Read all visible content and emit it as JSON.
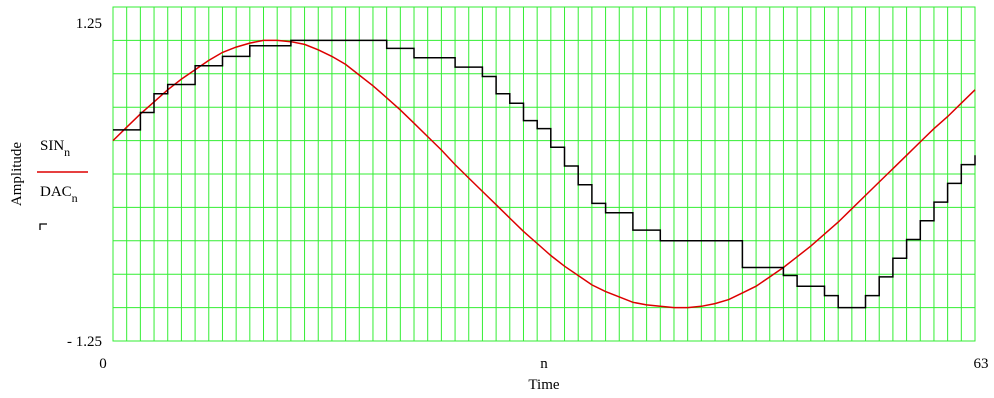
{
  "chart_data": {
    "type": "line",
    "xlabel": "Time",
    "x_variable": "n",
    "ylabel": "Amplitude",
    "xlim": [
      0,
      63
    ],
    "ylim": [
      -1.25,
      1.25
    ],
    "x_tick_labels": [
      "0",
      "63"
    ],
    "y_tick_labels": [
      "1.25",
      "- 1.25"
    ],
    "grid": true,
    "colors": {
      "grid": "#33ee33",
      "sin": "#dd0000",
      "dac": "#000000"
    },
    "legend": [
      {
        "base": "SIN",
        "subscript": "n",
        "style": "solid-red"
      },
      {
        "base": "DAC",
        "subscript": "n",
        "style": "step-black"
      }
    ],
    "series": [
      {
        "name": "SIN_n",
        "style": "line",
        "x": [
          0,
          1,
          2,
          3,
          4,
          5,
          6,
          7,
          8,
          9,
          10,
          11,
          12,
          13,
          14,
          15,
          16,
          17,
          18,
          19,
          20,
          21,
          22,
          23,
          24,
          25,
          26,
          27,
          28,
          29,
          30,
          31,
          32,
          33,
          34,
          35,
          36,
          37,
          38,
          39,
          40,
          41,
          42,
          43,
          44,
          45,
          46,
          47,
          48,
          49,
          50,
          51,
          52,
          53,
          54,
          55,
          56,
          57,
          58,
          59,
          60,
          61,
          62,
          63
        ],
        "values": [
          0.25,
          0.35,
          0.45,
          0.54,
          0.63,
          0.71,
          0.78,
          0.85,
          0.91,
          0.95,
          0.98,
          1.0,
          1.0,
          0.99,
          0.97,
          0.93,
          0.88,
          0.82,
          0.74,
          0.66,
          0.57,
          0.48,
          0.38,
          0.28,
          0.18,
          0.07,
          -0.03,
          -0.13,
          -0.23,
          -0.33,
          -0.43,
          -0.52,
          -0.61,
          -0.69,
          -0.76,
          -0.83,
          -0.88,
          -0.92,
          -0.96,
          -0.98,
          -0.99,
          -1.0,
          -1.0,
          -0.99,
          -0.97,
          -0.94,
          -0.89,
          -0.84,
          -0.77,
          -0.7,
          -0.62,
          -0.54,
          -0.45,
          -0.36,
          -0.26,
          -0.16,
          -0.06,
          0.04,
          0.14,
          0.24,
          0.34,
          0.43,
          0.53,
          0.63
        ]
      },
      {
        "name": "DAC_n",
        "style": "step",
        "x": [
          0,
          2,
          3,
          4,
          6,
          8,
          10,
          13,
          20,
          22,
          25,
          27,
          28,
          29,
          30,
          31,
          32,
          33,
          34,
          35,
          36,
          38,
          40,
          46,
          49,
          50,
          52,
          53,
          54,
          55,
          56,
          57,
          58,
          59,
          60,
          61,
          62,
          63
        ],
        "values": [
          0.33,
          0.46,
          0.6,
          0.67,
          0.81,
          0.88,
          0.96,
          1.0,
          0.94,
          0.87,
          0.8,
          0.73,
          0.6,
          0.53,
          0.4,
          0.34,
          0.2,
          0.06,
          -0.08,
          -0.22,
          -0.29,
          -0.42,
          -0.5,
          -0.7,
          -0.76,
          -0.84,
          -0.91,
          -1.0,
          -1.0,
          -0.91,
          -0.77,
          -0.63,
          -0.49,
          -0.35,
          -0.21,
          -0.07,
          0.07,
          0.14
        ]
      }
    ]
  }
}
